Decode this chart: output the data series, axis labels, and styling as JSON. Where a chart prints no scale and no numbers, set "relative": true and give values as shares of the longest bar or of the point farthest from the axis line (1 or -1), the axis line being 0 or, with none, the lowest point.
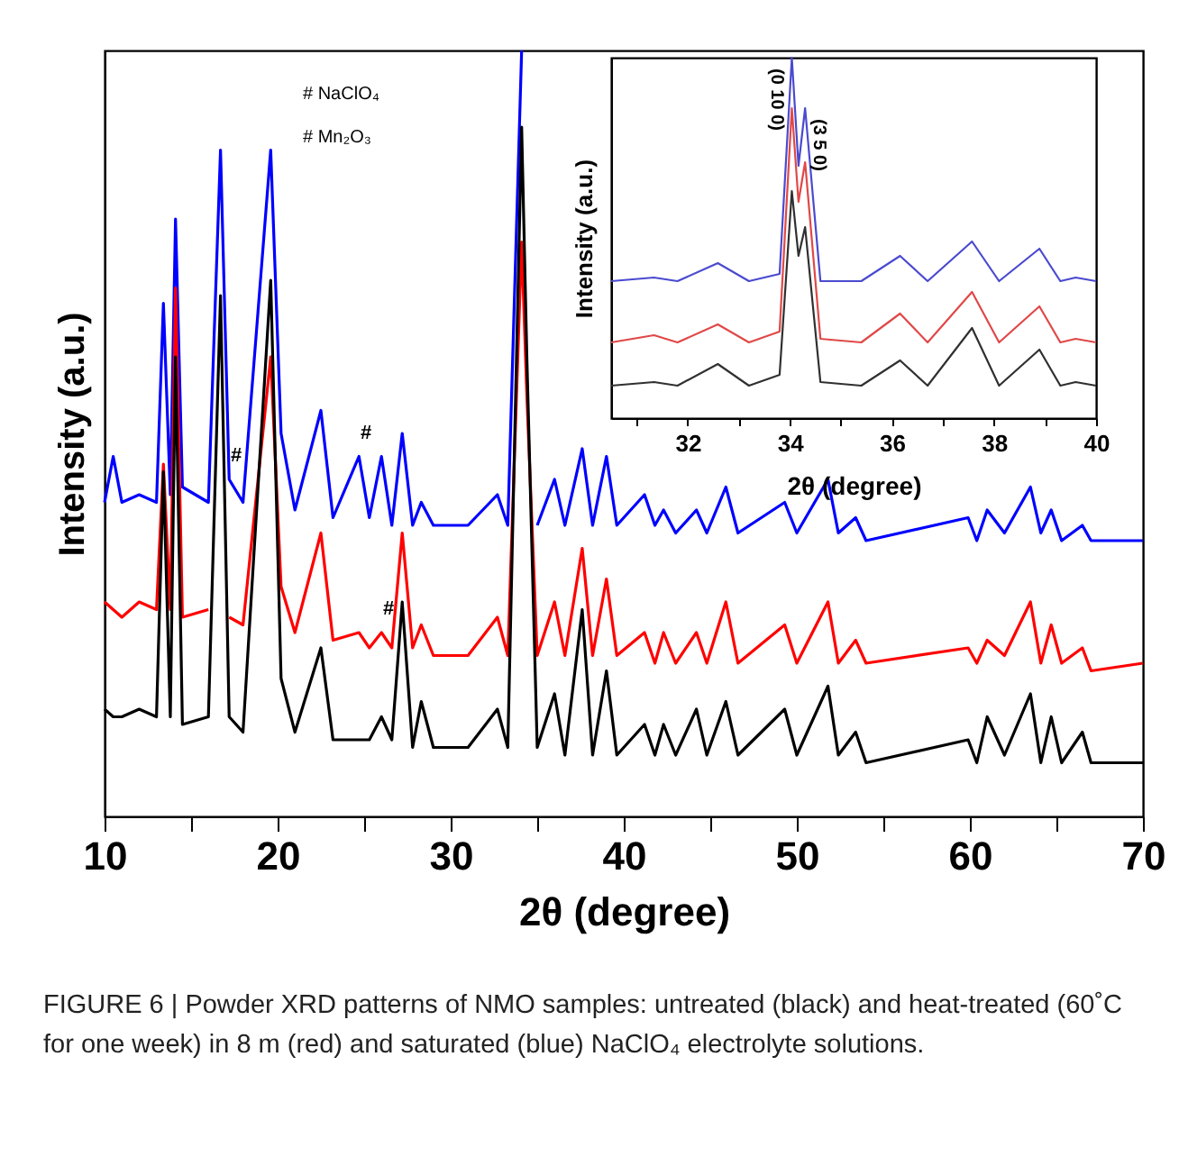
{
  "chart_data": [
    {
      "type": "line",
      "xlabel": "2θ (degree)",
      "ylabel": "Intensity (a.u.)",
      "relative": true,
      "marker": "none",
      "line_style": "solid",
      "grid": false,
      "legend": false,
      "xlim": [
        10,
        70
      ],
      "xticks": [
        10,
        {
          "value": 15,
          "label": null
        },
        20,
        {
          "value": 25,
          "label": null
        },
        30,
        {
          "value": 35,
          "label": null
        },
        40,
        {
          "value": 45,
          "label": null
        },
        50,
        {
          "value": 55,
          "label": null
        },
        60,
        {
          "value": 65,
          "label": null
        },
        70
      ],
      "x": [
        10,
        10.5,
        11,
        12,
        13,
        13.4,
        13.8,
        14.1,
        14.5,
        16,
        16.7,
        17.2,
        18,
        19.6,
        20.2,
        21,
        22.5,
        23.2,
        24.7,
        25.3,
        26.0,
        26.6,
        27.2,
        27.8,
        28.3,
        29,
        31,
        32.7,
        33.3,
        34.1,
        34.4,
        35,
        36.0,
        36.6,
        37.6,
        38.2,
        39.0,
        39.6,
        41.2,
        41.8,
        42.3,
        43,
        44.2,
        44.8,
        45.9,
        46.6,
        49.3,
        50,
        51.8,
        52.4,
        53.4,
        54,
        59.9,
        60.4,
        61.0,
        62,
        63.5,
        64.1,
        64.7,
        65.3,
        66.5,
        67,
        70
      ],
      "series": [
        {
          "color": "#0000ff",
          "values": [
            0.41,
            0.47,
            0.41,
            0.42,
            0.41,
            0.67,
            0.42,
            0.78,
            0.43,
            0.41,
            0.87,
            0.44,
            0.41,
            0.87,
            0.5,
            0.4,
            0.53,
            0.39,
            0.47,
            0.39,
            0.47,
            0.38,
            0.5,
            0.38,
            0.41,
            0.38,
            0.38,
            0.42,
            0.38,
            1,
            null,
            0.38,
            0.44,
            0.38,
            0.48,
            0.38,
            0.47,
            0.38,
            0.42,
            0.38,
            0.4,
            0.37,
            0.4,
            0.37,
            0.43,
            0.37,
            0.41,
            0.37,
            0.44,
            0.37,
            0.39,
            0.36,
            0.39,
            0.36,
            0.4,
            0.37,
            0.43,
            0.37,
            0.4,
            0.36,
            0.38,
            0.36,
            0.36
          ]
        },
        {
          "color": "#ff0000",
          "values": [
            0.28,
            0.27,
            0.26,
            0.28,
            0.27,
            0.46,
            0.27,
            0.69,
            0.26,
            0.27,
            null,
            0.26,
            0.25,
            0.6,
            0.3,
            0.24,
            0.37,
            0.23,
            0.24,
            0.22,
            0.24,
            0.22,
            0.37,
            0.22,
            0.25,
            0.21,
            0.21,
            0.26,
            0.21,
            0.75,
            0.55,
            0.21,
            0.28,
            0.21,
            0.35,
            0.21,
            0.31,
            0.21,
            0.24,
            0.2,
            0.24,
            0.2,
            0.24,
            0.2,
            0.28,
            0.2,
            0.25,
            0.2,
            0.28,
            0.2,
            0.23,
            0.2,
            0.22,
            0.2,
            0.23,
            0.21,
            0.28,
            0.2,
            0.25,
            0.2,
            0.22,
            0.19,
            0.2
          ]
        },
        {
          "color": "#000000",
          "values": [
            0.14,
            0.13,
            0.13,
            0.14,
            0.13,
            0.45,
            0.13,
            0.6,
            0.12,
            0.13,
            0.68,
            0.13,
            0.11,
            0.7,
            0.18,
            0.11,
            0.22,
            0.1,
            0.1,
            0.1,
            0.13,
            0.1,
            0.28,
            0.09,
            0.15,
            0.09,
            0.09,
            0.14,
            0.09,
            0.9,
            0.6,
            0.09,
            0.16,
            0.08,
            0.27,
            0.08,
            0.19,
            0.08,
            0.12,
            0.08,
            0.12,
            0.08,
            0.14,
            0.08,
            0.15,
            0.08,
            0.14,
            0.08,
            0.17,
            0.08,
            0.11,
            0.07,
            0.1,
            0.07,
            0.13,
            0.08,
            0.16,
            0.07,
            0.13,
            0.07,
            0.11,
            0.07,
            0.07
          ]
        }
      ],
      "annotations": [
        "# NaClO₄",
        "# Mn₂O₃",
        {
          "text": "#",
          "x": 17.2,
          "y": 0.44
        },
        {
          "text": "#",
          "x": 24.7,
          "y": 0.47
        },
        {
          "text": "#",
          "x": 26.0,
          "y": 0.24
        },
        "FIGURE 6 | Powder XRD patterns of NMO samples: untreated (black) and heat-treated (60˚C for one week) in 8 m (red) and saturated (blue) NaClO₄ electrolyte solutions."
      ]
    },
    {
      "type": "line",
      "xlabel": "2θ (degree)",
      "ylabel": "Intensity (a.u.)",
      "relative": true,
      "marker": "none",
      "line_style": "solid",
      "grid": false,
      "legend": false,
      "xlim": [
        30.5,
        40
      ],
      "xticks": [
        {
          "value": 31,
          "label": null
        },
        32,
        {
          "value": 33,
          "label": null
        },
        34,
        {
          "value": 35,
          "label": null
        },
        36,
        {
          "value": 37,
          "label": null
        },
        38,
        {
          "value": 39,
          "label": null
        },
        40
      ],
      "x": [
        30.5,
        31.34,
        31.8,
        32.59,
        33.2,
        33.8,
        34.04,
        34.17,
        34.3,
        34.6,
        35.4,
        36.16,
        36.7,
        37.57,
        38.1,
        38.89,
        39.3,
        39.6,
        40
      ],
      "series": [
        {
          "color": "#4a4ad0",
          "values": [
            0.38,
            0.39,
            0.38,
            0.43,
            0.38,
            0.4,
            1,
            0.7,
            0.86,
            0.38,
            0.38,
            0.45,
            0.38,
            0.49,
            0.38,
            0.47,
            0.38,
            0.39,
            0.38
          ]
        },
        {
          "color": "#e04848",
          "values": [
            0.21,
            0.23,
            0.21,
            0.26,
            0.21,
            0.24,
            0.86,
            0.6,
            0.71,
            0.22,
            0.21,
            0.29,
            0.21,
            0.35,
            0.21,
            0.31,
            0.21,
            0.22,
            0.21
          ]
        },
        {
          "color": "#303030",
          "values": [
            0.09,
            0.1,
            0.09,
            0.15,
            0.09,
            0.12,
            0.63,
            0.45,
            0.53,
            0.1,
            0.09,
            0.16,
            0.09,
            0.25,
            0.09,
            0.19,
            0.09,
            0.1,
            0.09
          ]
        }
      ],
      "annotations": [
        {
          "text": "(0 10 0)",
          "x": 34.04,
          "y": 1
        },
        {
          "text": "(3 5 0)",
          "x": 34.3,
          "y": 0.86
        }
      ]
    }
  ]
}
